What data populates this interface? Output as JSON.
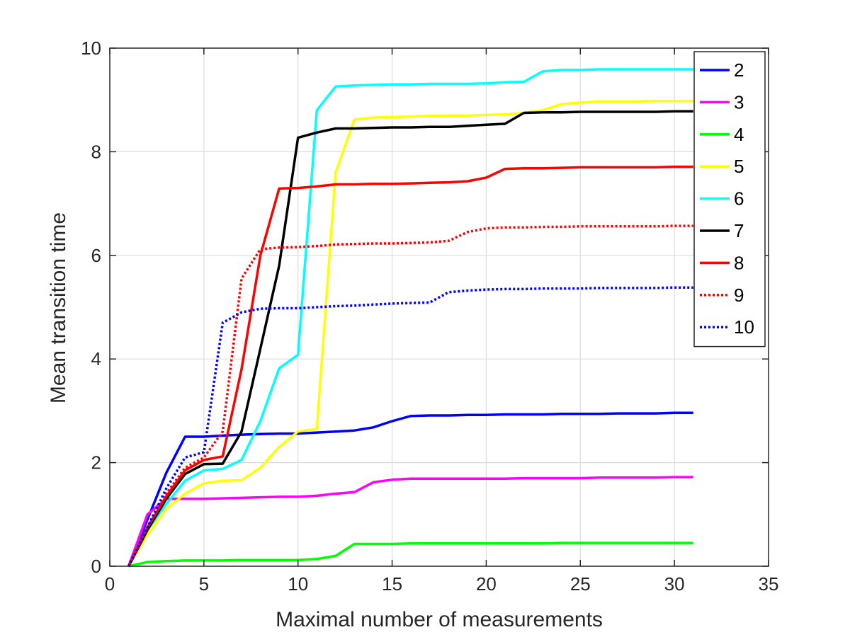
{
  "chart_data": {
    "type": "line",
    "title": "",
    "xlabel": "Maximal number of measurements",
    "ylabel": "Mean transition time",
    "xlim": [
      0,
      35
    ],
    "ylim": [
      0,
      10
    ],
    "xticks": [
      0,
      5,
      10,
      15,
      20,
      25,
      30,
      35
    ],
    "yticks": [
      0,
      2,
      4,
      6,
      8,
      10
    ],
    "grid": true,
    "legend_position": "top-right",
    "series": [
      {
        "name": "2",
        "color": "#0000ff",
        "dash": "solid",
        "points": [
          [
            1,
            0
          ],
          [
            3,
            1.8
          ],
          [
            4,
            2.5
          ],
          [
            5,
            2.5
          ],
          [
            6,
            2.52
          ],
          [
            7,
            2.54
          ],
          [
            8,
            2.55
          ],
          [
            9,
            2.56
          ],
          [
            10,
            2.56
          ],
          [
            11,
            2.58
          ],
          [
            12,
            2.6
          ],
          [
            13,
            2.62
          ],
          [
            14,
            2.68
          ],
          [
            15,
            2.8
          ],
          [
            16,
            2.9
          ],
          [
            17,
            2.91
          ],
          [
            18,
            2.91
          ],
          [
            19,
            2.92
          ],
          [
            20,
            2.92
          ],
          [
            21,
            2.93
          ],
          [
            22,
            2.93
          ],
          [
            23,
            2.93
          ],
          [
            24,
            2.94
          ],
          [
            25,
            2.94
          ],
          [
            26,
            2.94
          ],
          [
            27,
            2.95
          ],
          [
            28,
            2.95
          ],
          [
            29,
            2.95
          ],
          [
            30,
            2.96
          ],
          [
            31,
            2.96
          ]
        ]
      },
      {
        "name": "3",
        "color": "#ff00ff",
        "dash": "solid",
        "points": [
          [
            1,
            0
          ],
          [
            2,
            1.0
          ],
          [
            3,
            1.3
          ],
          [
            4,
            1.3
          ],
          [
            5,
            1.3
          ],
          [
            6,
            1.31
          ],
          [
            7,
            1.32
          ],
          [
            8,
            1.33
          ],
          [
            9,
            1.34
          ],
          [
            10,
            1.34
          ],
          [
            11,
            1.36
          ],
          [
            12,
            1.4
          ],
          [
            13,
            1.43
          ],
          [
            14,
            1.62
          ],
          [
            15,
            1.67
          ],
          [
            16,
            1.69
          ],
          [
            17,
            1.69
          ],
          [
            18,
            1.69
          ],
          [
            19,
            1.69
          ],
          [
            20,
            1.69
          ],
          [
            21,
            1.69
          ],
          [
            22,
            1.7
          ],
          [
            23,
            1.7
          ],
          [
            24,
            1.7
          ],
          [
            25,
            1.7
          ],
          [
            26,
            1.71
          ],
          [
            27,
            1.71
          ],
          [
            28,
            1.71
          ],
          [
            29,
            1.71
          ],
          [
            30,
            1.72
          ],
          [
            31,
            1.72
          ]
        ]
      },
      {
        "name": "4",
        "color": "#00ff00",
        "dash": "solid",
        "points": [
          [
            1,
            0
          ],
          [
            2,
            0.08
          ],
          [
            3,
            0.1
          ],
          [
            4,
            0.11
          ],
          [
            5,
            0.11
          ],
          [
            6,
            0.11
          ],
          [
            7,
            0.12
          ],
          [
            8,
            0.12
          ],
          [
            9,
            0.12
          ],
          [
            10,
            0.12
          ],
          [
            11,
            0.14
          ],
          [
            12,
            0.2
          ],
          [
            13,
            0.43
          ],
          [
            14,
            0.43
          ],
          [
            15,
            0.43
          ],
          [
            16,
            0.44
          ],
          [
            17,
            0.44
          ],
          [
            18,
            0.44
          ],
          [
            19,
            0.44
          ],
          [
            20,
            0.44
          ],
          [
            21,
            0.44
          ],
          [
            22,
            0.44
          ],
          [
            23,
            0.44
          ],
          [
            24,
            0.45
          ],
          [
            25,
            0.45
          ],
          [
            26,
            0.45
          ],
          [
            27,
            0.45
          ],
          [
            28,
            0.45
          ],
          [
            29,
            0.45
          ],
          [
            30,
            0.45
          ],
          [
            31,
            0.45
          ]
        ]
      },
      {
        "name": "5",
        "color": "#ffff00",
        "dash": "solid",
        "points": [
          [
            1,
            0
          ],
          [
            2,
            0.6
          ],
          [
            3,
            1.1
          ],
          [
            4,
            1.4
          ],
          [
            5,
            1.6
          ],
          [
            6,
            1.65
          ],
          [
            7,
            1.66
          ],
          [
            8,
            1.9
          ],
          [
            9,
            2.3
          ],
          [
            10,
            2.6
          ],
          [
            11,
            2.65
          ],
          [
            12,
            7.6
          ],
          [
            13,
            8.62
          ],
          [
            14,
            8.66
          ],
          [
            15,
            8.67
          ],
          [
            16,
            8.68
          ],
          [
            17,
            8.69
          ],
          [
            18,
            8.7
          ],
          [
            19,
            8.7
          ],
          [
            20,
            8.71
          ],
          [
            21,
            8.72
          ],
          [
            22,
            8.75
          ],
          [
            23,
            8.8
          ],
          [
            24,
            8.92
          ],
          [
            25,
            8.95
          ],
          [
            26,
            8.97
          ],
          [
            27,
            8.97
          ],
          [
            28,
            8.97
          ],
          [
            29,
            8.98
          ],
          [
            30,
            8.98
          ],
          [
            31,
            8.98
          ]
        ]
      },
      {
        "name": "6",
        "color": "#00ffff",
        "dash": "solid",
        "points": [
          [
            1,
            0
          ],
          [
            2,
            0.7
          ],
          [
            3,
            1.2
          ],
          [
            4,
            1.65
          ],
          [
            5,
            1.85
          ],
          [
            6,
            1.88
          ],
          [
            7,
            2.05
          ],
          [
            8,
            2.8
          ],
          [
            9,
            3.82
          ],
          [
            10,
            4.08
          ],
          [
            11,
            8.8
          ],
          [
            12,
            9.26
          ],
          [
            13,
            9.28
          ],
          [
            14,
            9.29
          ],
          [
            15,
            9.3
          ],
          [
            16,
            9.3
          ],
          [
            17,
            9.31
          ],
          [
            18,
            9.31
          ],
          [
            19,
            9.31
          ],
          [
            20,
            9.32
          ],
          [
            21,
            9.34
          ],
          [
            22,
            9.35
          ],
          [
            23,
            9.55
          ],
          [
            24,
            9.58
          ],
          [
            25,
            9.58
          ],
          [
            26,
            9.59
          ],
          [
            27,
            9.59
          ],
          [
            28,
            9.59
          ],
          [
            29,
            9.59
          ],
          [
            30,
            9.59
          ],
          [
            31,
            9.59
          ]
        ]
      },
      {
        "name": "7",
        "color": "#000000",
        "dash": "solid",
        "points": [
          [
            1,
            0
          ],
          [
            2,
            0.7
          ],
          [
            3,
            1.3
          ],
          [
            4,
            1.78
          ],
          [
            5,
            1.97
          ],
          [
            6,
            1.98
          ],
          [
            7,
            2.6
          ],
          [
            8,
            4.2
          ],
          [
            9,
            5.8
          ],
          [
            10,
            8.27
          ],
          [
            11,
            8.37
          ],
          [
            12,
            8.45
          ],
          [
            13,
            8.45
          ],
          [
            14,
            8.46
          ],
          [
            15,
            8.47
          ],
          [
            16,
            8.47
          ],
          [
            17,
            8.48
          ],
          [
            18,
            8.48
          ],
          [
            19,
            8.5
          ],
          [
            20,
            8.52
          ],
          [
            21,
            8.54
          ],
          [
            22,
            8.75
          ],
          [
            23,
            8.76
          ],
          [
            24,
            8.76
          ],
          [
            25,
            8.77
          ],
          [
            26,
            8.77
          ],
          [
            27,
            8.77
          ],
          [
            28,
            8.77
          ],
          [
            29,
            8.77
          ],
          [
            30,
            8.78
          ],
          [
            31,
            8.78
          ]
        ]
      },
      {
        "name": "8",
        "color": "#ff0000",
        "dash": "solid",
        "points": [
          [
            1,
            0
          ],
          [
            2,
            0.75
          ],
          [
            3,
            1.35
          ],
          [
            4,
            1.85
          ],
          [
            5,
            2.05
          ],
          [
            6,
            2.12
          ],
          [
            7,
            3.8
          ],
          [
            8,
            6.0
          ],
          [
            9,
            7.29
          ],
          [
            10,
            7.3
          ],
          [
            11,
            7.33
          ],
          [
            12,
            7.37
          ],
          [
            13,
            7.37
          ],
          [
            14,
            7.38
          ],
          [
            15,
            7.38
          ],
          [
            16,
            7.39
          ],
          [
            17,
            7.4
          ],
          [
            18,
            7.41
          ],
          [
            19,
            7.43
          ],
          [
            20,
            7.5
          ],
          [
            21,
            7.67
          ],
          [
            22,
            7.68
          ],
          [
            23,
            7.68
          ],
          [
            24,
            7.69
          ],
          [
            25,
            7.7
          ],
          [
            26,
            7.7
          ],
          [
            27,
            7.7
          ],
          [
            28,
            7.7
          ],
          [
            29,
            7.7
          ],
          [
            30,
            7.71
          ],
          [
            31,
            7.71
          ]
        ]
      },
      {
        "name": "9",
        "color": "#ff0000",
        "dash": "dotted",
        "points": [
          [
            1,
            0
          ],
          [
            2,
            0.75
          ],
          [
            3,
            1.4
          ],
          [
            4,
            1.9
          ],
          [
            5,
            2.1
          ],
          [
            6,
            2.6
          ],
          [
            7,
            5.55
          ],
          [
            8,
            6.12
          ],
          [
            9,
            6.15
          ],
          [
            10,
            6.16
          ],
          [
            11,
            6.18
          ],
          [
            12,
            6.21
          ],
          [
            13,
            6.22
          ],
          [
            14,
            6.23
          ],
          [
            15,
            6.23
          ],
          [
            16,
            6.24
          ],
          [
            17,
            6.25
          ],
          [
            18,
            6.28
          ],
          [
            19,
            6.45
          ],
          [
            20,
            6.52
          ],
          [
            21,
            6.54
          ],
          [
            22,
            6.54
          ],
          [
            23,
            6.55
          ],
          [
            24,
            6.55
          ],
          [
            25,
            6.56
          ],
          [
            26,
            6.56
          ],
          [
            27,
            6.56
          ],
          [
            28,
            6.56
          ],
          [
            29,
            6.56
          ],
          [
            30,
            6.57
          ],
          [
            31,
            6.57
          ]
        ]
      },
      {
        "name": "10",
        "color": "#0000ff",
        "dash": "dotted",
        "points": [
          [
            1,
            0
          ],
          [
            2,
            0.75
          ],
          [
            3,
            1.5
          ],
          [
            4,
            2.1
          ],
          [
            5,
            2.2
          ],
          [
            6,
            4.7
          ],
          [
            7,
            4.9
          ],
          [
            8,
            4.97
          ],
          [
            9,
            4.98
          ],
          [
            10,
            4.98
          ],
          [
            11,
            5.0
          ],
          [
            12,
            5.02
          ],
          [
            13,
            5.03
          ],
          [
            14,
            5.05
          ],
          [
            15,
            5.07
          ],
          [
            16,
            5.08
          ],
          [
            17,
            5.09
          ],
          [
            18,
            5.29
          ],
          [
            19,
            5.32
          ],
          [
            20,
            5.34
          ],
          [
            21,
            5.35
          ],
          [
            22,
            5.35
          ],
          [
            23,
            5.36
          ],
          [
            24,
            5.36
          ],
          [
            25,
            5.36
          ],
          [
            26,
            5.37
          ],
          [
            27,
            5.37
          ],
          [
            28,
            5.37
          ],
          [
            29,
            5.37
          ],
          [
            30,
            5.38
          ],
          [
            31,
            5.38
          ]
        ]
      }
    ]
  }
}
